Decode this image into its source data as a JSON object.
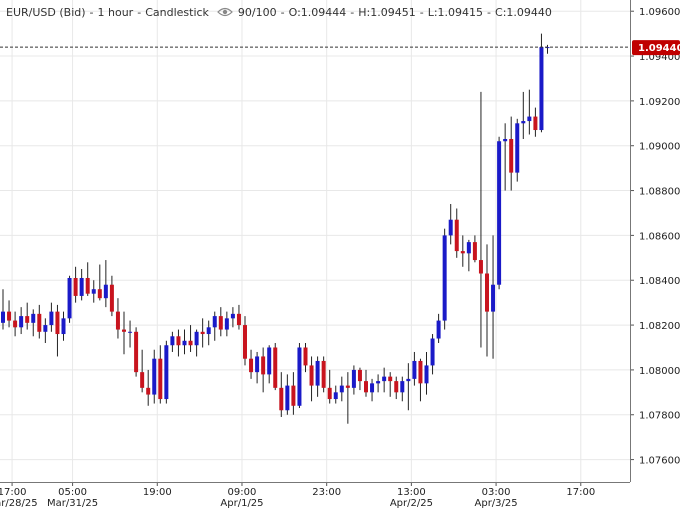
{
  "header": {
    "symbol": "EUR/USD (Bid)",
    "interval": "1 hour",
    "chart_style": "Candlestick",
    "visibility_icon": "eye-icon",
    "count": "90/100",
    "open": "O:1.09444",
    "high": "H:1.09451",
    "low": "L:1.09415",
    "close": "C:1.09440"
  },
  "colors": {
    "up": "#1a1ac8",
    "down": "#c8141e",
    "wick": "#222222",
    "grid": "#e8e8e8",
    "current_price_bg": "#c00000",
    "current_price_text": "#ffffff"
  },
  "chart_data": {
    "type": "candlestick",
    "ylim": [
      1.075,
      1.0965
    ],
    "y_ticks": [
      "1.09600",
      "1.09400",
      "1.09200",
      "1.09000",
      "1.08800",
      "1.08600",
      "1.08400",
      "1.08200",
      "1.08000",
      "1.07800",
      "1.07600"
    ],
    "x_ticks": [
      {
        "label": "17:00",
        "date": "Mar/28/25",
        "bar": 1.5
      },
      {
        "label": "05:00",
        "date": "Mar/31/25",
        "bar": 11.5
      },
      {
        "label": "19:00",
        "bar": 25.5
      },
      {
        "label": "09:00",
        "date": "Apr/1/25",
        "bar": 39.5
      },
      {
        "label": "23:00",
        "bar": 53.5
      },
      {
        "label": "13:00",
        "date": "Apr/2/25",
        "bar": 67.5
      },
      {
        "label": "03:00",
        "date": "Apr/3/25",
        "bar": 81.5
      },
      {
        "label": "17:00",
        "bar": 95.5
      }
    ],
    "current_price": "1.09440",
    "ohlc": [
      [
        1.0821,
        1.0836,
        1.0818,
        1.0826
      ],
      [
        1.0826,
        1.0831,
        1.0819,
        1.0822
      ],
      [
        1.0822,
        1.0826,
        1.0815,
        1.0819
      ],
      [
        1.0819,
        1.0828,
        1.0816,
        1.0824
      ],
      [
        1.0824,
        1.083,
        1.0818,
        1.0821
      ],
      [
        1.0821,
        1.0827,
        1.0815,
        1.0825
      ],
      [
        1.0825,
        1.0829,
        1.0814,
        1.0817
      ],
      [
        1.0817,
        1.0823,
        1.0812,
        1.082
      ],
      [
        1.082,
        1.083,
        1.0817,
        1.0826
      ],
      [
        1.0826,
        1.0829,
        1.0806,
        1.0816
      ],
      [
        1.0816,
        1.0826,
        1.0813,
        1.0823
      ],
      [
        1.0823,
        1.0842,
        1.0821,
        1.0841
      ],
      [
        1.0841,
        1.0846,
        1.083,
        1.0833
      ],
      [
        1.0833,
        1.0845,
        1.0831,
        1.0841
      ],
      [
        1.0841,
        1.0848,
        1.0833,
        1.0834
      ],
      [
        1.0834,
        1.084,
        1.083,
        1.0836
      ],
      [
        1.0836,
        1.0847,
        1.0831,
        1.0832
      ],
      [
        1.0832,
        1.0849,
        1.0828,
        1.0838
      ],
      [
        1.0838,
        1.0842,
        1.0824,
        1.0826
      ],
      [
        1.0826,
        1.0832,
        1.0814,
        1.0818
      ],
      [
        1.0818,
        1.0826,
        1.0807,
        1.0817
      ],
      [
        1.0817,
        1.0822,
        1.081,
        1.0817
      ],
      [
        1.0817,
        1.0819,
        1.0797,
        1.0799
      ],
      [
        1.0799,
        1.0809,
        1.079,
        1.0792
      ],
      [
        1.0792,
        1.08,
        1.0784,
        1.0789
      ],
      [
        1.0789,
        1.0809,
        1.0785,
        1.0805
      ],
      [
        1.0805,
        1.0811,
        1.0785,
        1.0787
      ],
      [
        1.0787,
        1.0813,
        1.0785,
        1.0811
      ],
      [
        1.0811,
        1.0817,
        1.0808,
        1.0815
      ],
      [
        1.0815,
        1.0818,
        1.0806,
        1.0811
      ],
      [
        1.0811,
        1.0818,
        1.0807,
        1.0813
      ],
      [
        1.0813,
        1.082,
        1.0808,
        1.0811
      ],
      [
        1.0811,
        1.0818,
        1.0806,
        1.0817
      ],
      [
        1.0817,
        1.0823,
        1.081,
        1.0816
      ],
      [
        1.0816,
        1.0822,
        1.0811,
        1.0819
      ],
      [
        1.0819,
        1.0826,
        1.0813,
        1.0824
      ],
      [
        1.0824,
        1.0828,
        1.0815,
        1.0818
      ],
      [
        1.0818,
        1.0826,
        1.0815,
        1.0823
      ],
      [
        1.0823,
        1.0828,
        1.0819,
        1.0825
      ],
      [
        1.0825,
        1.0829,
        1.0818,
        1.082
      ],
      [
        1.082,
        1.0824,
        1.0802,
        1.0805
      ],
      [
        1.0805,
        1.0809,
        1.0796,
        1.0799
      ],
      [
        1.0799,
        1.0808,
        1.0794,
        1.0806
      ],
      [
        1.0806,
        1.081,
        1.079,
        1.0798
      ],
      [
        1.0798,
        1.0811,
        1.0794,
        1.081
      ],
      [
        1.081,
        1.0812,
        1.0791,
        1.0792
      ],
      [
        1.0792,
        1.0799,
        1.0779,
        1.0782
      ],
      [
        1.0782,
        1.0798,
        1.078,
        1.0793
      ],
      [
        1.0793,
        1.0799,
        1.078,
        1.0784
      ],
      [
        1.0784,
        1.0812,
        1.0783,
        1.081
      ],
      [
        1.081,
        1.0812,
        1.0799,
        1.0802
      ],
      [
        1.0802,
        1.0806,
        1.0786,
        1.0793
      ],
      [
        1.0793,
        1.0806,
        1.0788,
        1.0804
      ],
      [
        1.0804,
        1.0806,
        1.079,
        1.0792
      ],
      [
        1.0792,
        1.08,
        1.0785,
        1.0787
      ],
      [
        1.0787,
        1.0793,
        1.0785,
        1.079
      ],
      [
        1.079,
        1.0797,
        1.0786,
        1.0793
      ],
      [
        1.0793,
        1.0799,
        1.0776,
        1.0792
      ],
      [
        1.0792,
        1.0802,
        1.0789,
        1.08
      ],
      [
        1.08,
        1.0801,
        1.0791,
        1.0795
      ],
      [
        1.0795,
        1.08,
        1.0788,
        1.079
      ],
      [
        1.079,
        1.0796,
        1.0786,
        1.0794
      ],
      [
        1.0794,
        1.0798,
        1.079,
        1.0795
      ],
      [
        1.0795,
        1.0801,
        1.079,
        1.0797
      ],
      [
        1.0797,
        1.0799,
        1.0788,
        1.0795
      ],
      [
        1.0795,
        1.0797,
        1.0787,
        1.079
      ],
      [
        1.079,
        1.0797,
        1.0786,
        1.0795
      ],
      [
        1.0795,
        1.0803,
        1.0782,
        1.0796
      ],
      [
        1.0796,
        1.0808,
        1.0793,
        1.0804
      ],
      [
        1.0804,
        1.0805,
        1.0786,
        1.0794
      ],
      [
        1.0794,
        1.0808,
        1.0789,
        1.0802
      ],
      [
        1.0802,
        1.0816,
        1.0798,
        1.0814
      ],
      [
        1.0814,
        1.0825,
        1.0812,
        1.0822
      ],
      [
        1.0822,
        1.0863,
        1.0818,
        1.086
      ],
      [
        1.086,
        1.0874,
        1.0856,
        1.0867
      ],
      [
        1.0867,
        1.0872,
        1.085,
        1.0853
      ],
      [
        1.0853,
        1.086,
        1.0846,
        1.0852
      ],
      [
        1.0852,
        1.0858,
        1.0844,
        1.0857
      ],
      [
        1.0857,
        1.086,
        1.0848,
        1.0849
      ],
      [
        1.0849,
        1.0924,
        1.081,
        1.0843
      ],
      [
        1.0843,
        1.0856,
        1.0806,
        1.0826
      ],
      [
        1.0826,
        1.086,
        1.0805,
        1.0838
      ],
      [
        1.0838,
        1.0904,
        1.0836,
        1.0902
      ],
      [
        1.0902,
        1.091,
        1.088,
        1.0903
      ],
      [
        1.0903,
        1.0913,
        1.088,
        1.0888
      ],
      [
        1.0888,
        1.0912,
        1.0884,
        1.091
      ],
      [
        1.091,
        1.0924,
        1.0903,
        1.0911
      ],
      [
        1.0911,
        1.0925,
        1.0905,
        1.0913
      ],
      [
        1.0913,
        1.0917,
        1.0904,
        1.0907
      ],
      [
        1.0907,
        1.095,
        1.0906,
        1.0944
      ],
      [
        1.0944,
        1.0945,
        1.0941,
        1.0944
      ]
    ]
  }
}
